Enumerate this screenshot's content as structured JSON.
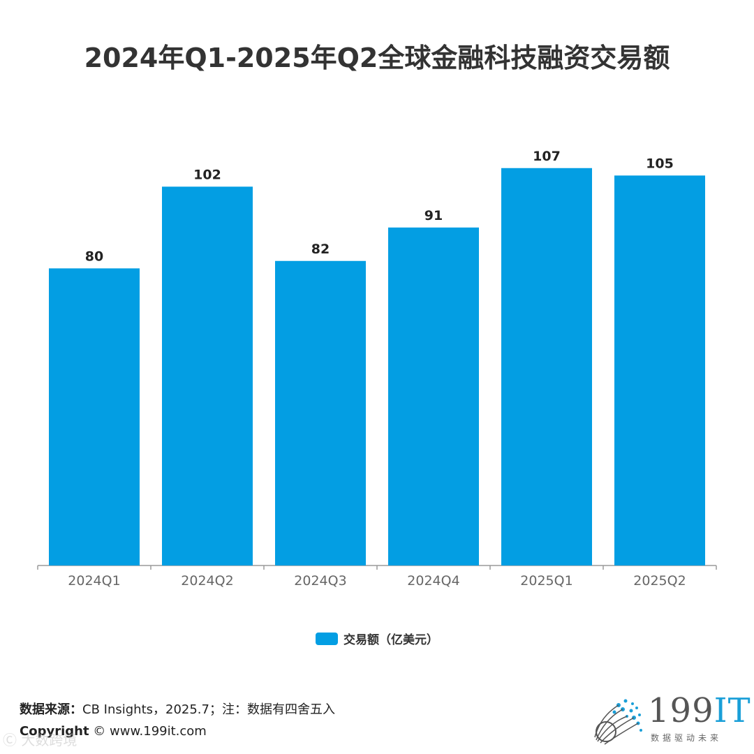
{
  "colors": {
    "bar": "#039ee3",
    "axis": "#9a9a9a",
    "label": "#222222",
    "tick": "#666666",
    "logo_accent": "#1a9fd8"
  },
  "title": "2024年Q1-2025年Q2全球金融科技融资交易额",
  "legend": {
    "label": "交易额（亿美元）"
  },
  "chart_data": {
    "type": "bar",
    "title": "2024年Q1-2025年Q2全球金融科技融资交易额",
    "categories": [
      "2024Q1",
      "2024Q2",
      "2024Q3",
      "2024Q4",
      "2025Q1",
      "2025Q2"
    ],
    "series": [
      {
        "name": "交易额（亿美元）",
        "values": [
          80,
          102,
          82,
          91,
          107,
          105
        ]
      }
    ],
    "ylim": [
      0,
      125
    ],
    "xlabel": "",
    "ylabel": "",
    "grid": false,
    "legend_position": "bottom"
  },
  "footer": {
    "source_label": "数据来源：",
    "source_text": "CB Insights，2025.7；注：数据有四舍五入",
    "copyright_label": "Copyright",
    "copyright_text": "© www.199it.com",
    "watermark": "Ⓒ 大数跨境"
  },
  "logo": {
    "num": "199",
    "it": "IT",
    "sub": "数据驱动未来"
  }
}
